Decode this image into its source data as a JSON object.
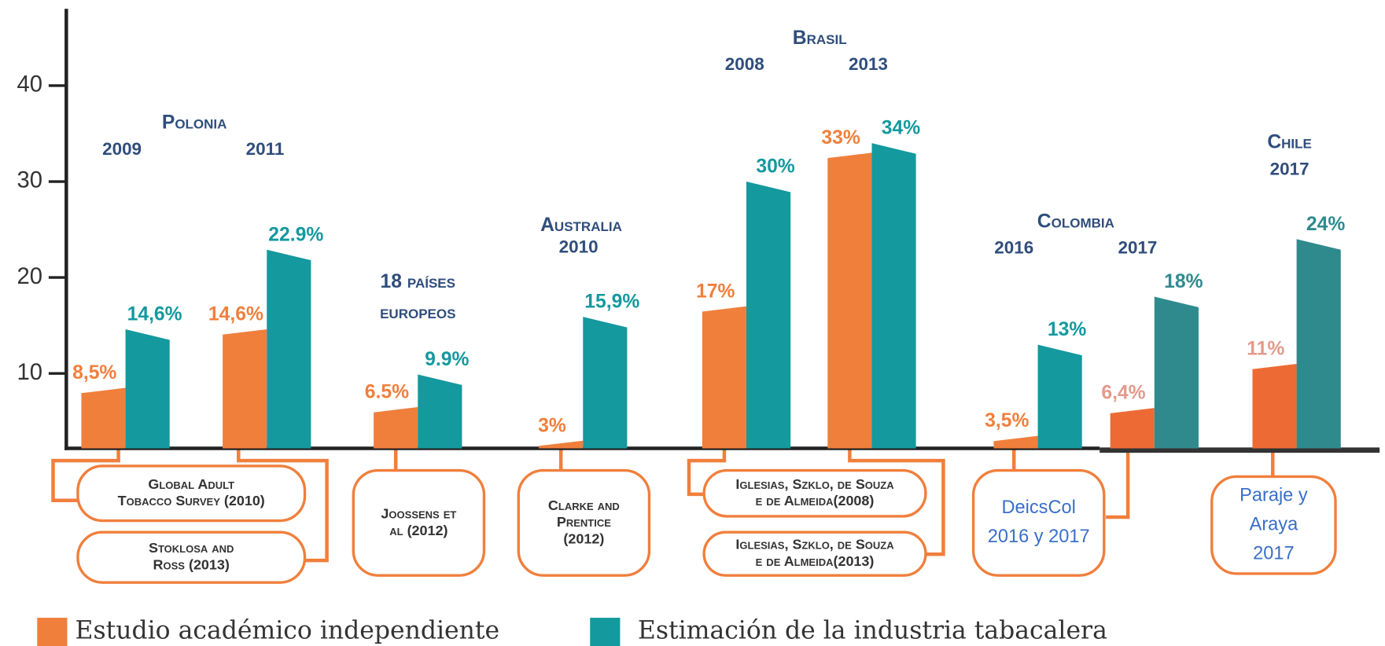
{
  "chart_data": {
    "type": "bar",
    "ylim": [
      2.2,
      48
    ],
    "yticks": [
      10,
      20,
      30,
      40
    ],
    "groups": [
      {
        "label": "Polonia",
        "years": [
          "2009",
          "2011"
        ]
      },
      {
        "label_lines": [
          "18 países",
          "europeos"
        ]
      },
      {
        "label": "Australia",
        "years": [
          "2010"
        ]
      },
      {
        "label": "Brasil",
        "years": [
          "2008",
          "2013"
        ]
      },
      {
        "label": "Colombia",
        "years": [
          "2016",
          "2017"
        ]
      },
      {
        "label": "Chile",
        "years": [
          "2017"
        ]
      }
    ],
    "series": [
      {
        "name": "Estudio académico independiente",
        "color": "#f07f3c",
        "values": [
          8.5,
          14.6,
          6.5,
          3,
          17,
          33,
          3.5,
          6.4,
          11
        ],
        "value_labels": [
          "8,5%",
          "14,6%",
          "6.5%",
          "3%",
          "17%",
          "33%",
          "3,5%",
          "6,4%",
          "11%"
        ]
      },
      {
        "name": "Estimación de la industria tabacalera",
        "color": "#14999e",
        "values": [
          14.6,
          22.9,
          9.9,
          15.9,
          30,
          34,
          13,
          18,
          24
        ],
        "value_labels": [
          "14,6%",
          "22.9%",
          "9.9%",
          "15,9%",
          "30%",
          "34%",
          "13%",
          "18%",
          "24%"
        ]
      }
    ],
    "sources": [
      [
        "Global Adult",
        "Tobacco Survey (2010)"
      ],
      [
        "Stoklosa and",
        "Ross (2013)"
      ],
      [
        "Joossens et",
        "al (2012)"
      ],
      [
        "Clarke and",
        "Prentice",
        "(2012)"
      ],
      [
        "Iglesias, Szklo, de Souza",
        "e de Almeida(2008)"
      ],
      [
        "Iglesias, Szklo, de Souza",
        "e de Almeida(2013)"
      ],
      [
        "DeicsCol",
        "2016 y 2017"
      ],
      [
        "Paraje y",
        "Araya",
        "2017"
      ]
    ]
  }
}
